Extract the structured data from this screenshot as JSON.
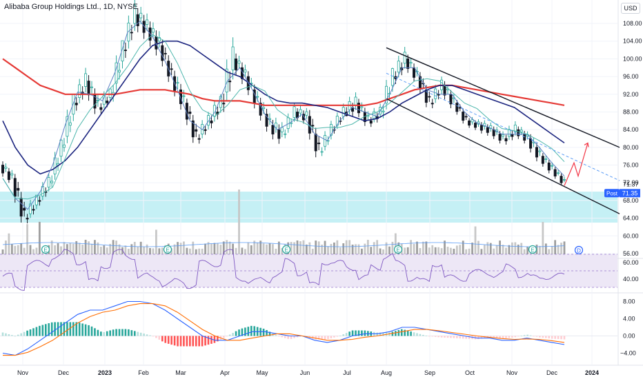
{
  "header": {
    "symbol_title": "Alibaba Group Holdings Ltd., 1D, NYSE",
    "currency_button": "USD"
  },
  "colors": {
    "up": "#26a69a",
    "down": "#131722",
    "ma200": "#e53935",
    "ma50": "#1a237e",
    "ma20": "#4db6ac",
    "ma10": "#5c7fc4",
    "zone": "#b2ebf2",
    "rsi_band": "#ede7f6",
    "rsi_line": "#7e57c2",
    "macd_line": "#2962ff",
    "signal_line": "#ff6d00",
    "projection": "#f23645"
  },
  "chart_data": [
    {
      "type": "candlestick",
      "name": "price",
      "yticks": [
        56.0,
        60.0,
        64.0,
        68.0,
        72.0,
        76.0,
        80.0,
        84.0,
        88.0,
        92.0,
        96.0,
        100.0,
        104.0,
        108.0
      ],
      "xticks": [
        "Nov",
        "Dec",
        "2023",
        "Feb",
        "Mar",
        "Apr",
        "May",
        "Jun",
        "Jul",
        "Aug",
        "Sep",
        "Oct",
        "Nov",
        "Dec",
        "2024"
      ],
      "last_close_label": "71.37",
      "post_label": "Post",
      "post_value": "71.35",
      "support_zone": [
        63.0,
        70.0
      ],
      "ohlc_weekly": [
        [
          76,
          79,
          72,
          73
        ],
        [
          73,
          74,
          62,
          64
        ],
        [
          64,
          69,
          61,
          68
        ],
        [
          68,
          74,
          66,
          72
        ],
        [
          72,
          82,
          71,
          80
        ],
        [
          80,
          92,
          79,
          90
        ],
        [
          90,
          99,
          88,
          95
        ],
        [
          95,
          97,
          86,
          89
        ],
        [
          89,
          93,
          85,
          92
        ],
        [
          92,
          104,
          90,
          102
        ],
        [
          102,
          114,
          100,
          110
        ],
        [
          110,
          116,
          104,
          107
        ],
        [
          107,
          112,
          100,
          103
        ],
        [
          103,
          105,
          94,
          96
        ],
        [
          96,
          99,
          88,
          90
        ],
        [
          90,
          91,
          80,
          82
        ],
        [
          82,
          88,
          80,
          86
        ],
        [
          86,
          92,
          82,
          90
        ],
        [
          90,
          106,
          88,
          100
        ],
        [
          100,
          104,
          94,
          96
        ],
        [
          96,
          98,
          88,
          90
        ],
        [
          90,
          92,
          82,
          85
        ],
        [
          85,
          90,
          80,
          83
        ],
        [
          83,
          90,
          82,
          88
        ],
        [
          88,
          92,
          85,
          87
        ],
        [
          87,
          89,
          77,
          79
        ],
        [
          79,
          86,
          78,
          84
        ],
        [
          84,
          90,
          83,
          88
        ],
        [
          88,
          96,
          87,
          90
        ],
        [
          90,
          92,
          84,
          86
        ],
        [
          86,
          90,
          83,
          88
        ],
        [
          88,
          98,
          86,
          96
        ],
        [
          96,
          104,
          94,
          100
        ],
        [
          100,
          102,
          94,
          96
        ],
        [
          96,
          97,
          88,
          90
        ],
        [
          90,
          96,
          88,
          94
        ],
        [
          94,
          96,
          88,
          90
        ],
        [
          90,
          91,
          85,
          86
        ],
        [
          86,
          88,
          83,
          85
        ],
        [
          85,
          88,
          82,
          84
        ],
        [
          84,
          86,
          80,
          82
        ],
        [
          82,
          86,
          79,
          84
        ],
        [
          84,
          86,
          80,
          82
        ],
        [
          82,
          84,
          76,
          78
        ],
        [
          78,
          80,
          74,
          75
        ],
        [
          75,
          76,
          71,
          72
        ]
      ],
      "series": [
        {
          "name": "MA200",
          "values": [
            100,
            98,
            96,
            94,
            93,
            92,
            92,
            92,
            92,
            92,
            92.5,
            93,
            93,
            93,
            92.5,
            92,
            91,
            90.5,
            90.5,
            90.5,
            90,
            89.5,
            89.5,
            89.5,
            89.5,
            89.5,
            89.5,
            89.5,
            89.5,
            89.5,
            90,
            91,
            92,
            93,
            93.5,
            94,
            94,
            93.5,
            93,
            92.5,
            92,
            91.5,
            91,
            90.5,
            90,
            89.5
          ]
        },
        {
          "name": "MA50",
          "values": [
            86,
            80,
            76,
            74,
            75,
            77,
            80,
            84,
            88,
            92,
            96,
            100,
            103,
            104,
            104,
            103,
            101,
            99,
            97,
            96,
            94,
            92,
            90.5,
            90,
            90,
            89.5,
            89,
            88,
            87,
            86,
            86.5,
            88,
            90,
            91.5,
            93,
            94,
            94,
            93,
            92,
            91,
            90,
            89,
            87,
            85,
            83,
            81
          ]
        }
      ],
      "channel_upper": [
        [
          102.5,
          "Aug"
        ],
        [
          80.0,
          "2024"
        ]
      ],
      "channel_lower": [
        [
          91.0,
          "Aug"
        ],
        [
          65.0,
          "2024"
        ]
      ],
      "projection_path": [
        71.35,
        76.5,
        73.5,
        81.0
      ]
    },
    {
      "type": "bar",
      "name": "volume",
      "yticks": [],
      "earnings_marker": "E",
      "dividend_marker": "D"
    },
    {
      "type": "line",
      "name": "RSI",
      "yticks": [
        60.0,
        40.0
      ],
      "band": [
        30,
        70
      ]
    },
    {
      "type": "histogram",
      "name": "MACD",
      "yticks": [
        8.0,
        4.0,
        0.0,
        -4.0
      ],
      "ylim": [
        -6,
        9
      ],
      "series": [
        {
          "name": "MACD",
          "values": [
            -4,
            -4.5,
            -3,
            -1,
            1,
            3,
            5,
            6,
            6,
            7,
            8,
            8,
            7.5,
            6,
            4,
            2,
            0,
            -1,
            -1,
            0,
            1,
            1,
            0.5,
            0,
            0,
            -1,
            -1.5,
            -1,
            0,
            0.5,
            0.5,
            1,
            2,
            2,
            1.5,
            1,
            0.5,
            0,
            -0.5,
            -0.5,
            -1,
            -1,
            -0.5,
            -1,
            -1.5,
            -2
          ]
        },
        {
          "name": "Signal",
          "values": [
            -4.5,
            -4.5,
            -3.8,
            -2.5,
            -1,
            1,
            3,
            4.5,
            5.5,
            6,
            7,
            7.5,
            7.5,
            7,
            5.5,
            3.5,
            1.5,
            0,
            -1,
            -1,
            -0.5,
            0,
            0.5,
            0.5,
            0,
            -0.5,
            -1,
            -1,
            -0.8,
            -0.3,
            0,
            0.5,
            1,
            1.5,
            1.5,
            1.2,
            0.8,
            0.4,
            0,
            -0.3,
            -0.6,
            -0.8,
            -0.7,
            -0.8,
            -1.1,
            -1.5
          ]
        }
      ]
    }
  ]
}
